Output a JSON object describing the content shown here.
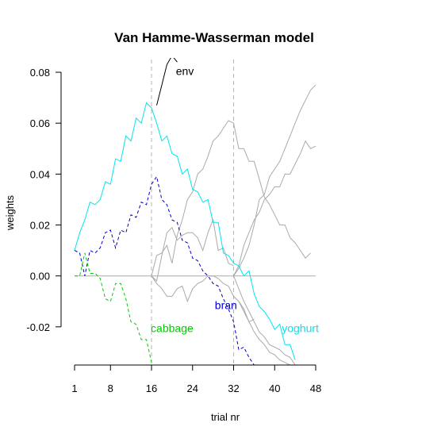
{
  "chart_data": {
    "type": "line",
    "title": "Van Hamme-Wasserman model",
    "xlabel": "trial nr",
    "ylabel": "weights",
    "xlim": [
      1,
      48
    ],
    "ylim": [
      -0.035,
      0.085
    ],
    "x_ticks": [
      1,
      8,
      16,
      24,
      32,
      40,
      48
    ],
    "y_ticks": [
      0.08,
      0.06,
      0.04,
      0.02,
      0.0,
      -0.02
    ],
    "y_tick_labels": [
      "0.08",
      "0.06",
      "0.04",
      "0.02",
      "0.00",
      "-0.02"
    ],
    "vlines": [
      16,
      32
    ],
    "hline": 0,
    "grid": false,
    "labels": [
      {
        "text": "env",
        "series": "env",
        "x": 22.5,
        "y": 0.0805
      },
      {
        "text": "bran",
        "series": "bran",
        "x": 30.5,
        "y": -0.0115
      },
      {
        "text": "cabbage",
        "series": "cabbage",
        "x": 20,
        "y": -0.0205
      },
      {
        "text": "yoghurt",
        "series": "yoghurt",
        "x": 45,
        "y": -0.0205
      }
    ],
    "series": [
      {
        "name": "env",
        "color": "#000000",
        "style": "solid",
        "x": [
          17,
          18,
          19,
          20,
          21
        ],
        "y": [
          0.067,
          0.075,
          0.083,
          0.0865,
          0.084
        ]
      },
      {
        "name": "yoghurt",
        "color": "#00e5ee",
        "style": "solid",
        "x": [
          1,
          2,
          3,
          4,
          5,
          6,
          7,
          8,
          9,
          10,
          11,
          12,
          13,
          14,
          15,
          16,
          17,
          18,
          19,
          20,
          21,
          22,
          23,
          24,
          25,
          26,
          27,
          28,
          29,
          30,
          31,
          32,
          33,
          34,
          35,
          36,
          37,
          38,
          39,
          40,
          41,
          42,
          43,
          44
        ],
        "y": [
          0.01,
          0.017,
          0.022,
          0.029,
          0.028,
          0.03,
          0.037,
          0.036,
          0.046,
          0.045,
          0.055,
          0.053,
          0.062,
          0.06,
          0.068,
          0.066,
          0.06,
          0.053,
          0.055,
          0.048,
          0.047,
          0.04,
          0.042,
          0.034,
          0.033,
          0.029,
          0.03,
          0.021,
          0.021,
          0.009,
          0.008,
          0.005,
          0.004,
          0.0,
          0.002,
          -0.007,
          -0.012,
          -0.014,
          -0.017,
          -0.021,
          -0.019,
          -0.027,
          -0.027,
          -0.033
        ]
      },
      {
        "name": "bran",
        "color": "#0000cd",
        "style": "dashed",
        "x": [
          1,
          2,
          3,
          4,
          5,
          6,
          7,
          8,
          9,
          10,
          11,
          12,
          13,
          14,
          15,
          16,
          17,
          18,
          19,
          20,
          21,
          22,
          23,
          24,
          25,
          26,
          27,
          28,
          29,
          30,
          31,
          32,
          33,
          34,
          35,
          36
        ],
        "y": [
          0.01,
          0.009,
          0.0,
          0.01,
          0.009,
          0.011,
          0.017,
          0.018,
          0.011,
          0.018,
          0.017,
          0.024,
          0.023,
          0.029,
          0.028,
          0.036,
          0.039,
          0.03,
          0.028,
          0.022,
          0.021,
          0.014,
          0.013,
          0.007,
          0.006,
          0.002,
          0.0,
          -0.003,
          -0.004,
          -0.009,
          -0.013,
          -0.018,
          -0.029,
          -0.028,
          -0.032,
          -0.035
        ]
      },
      {
        "name": "cabbage",
        "color": "#00cd00",
        "style": "dashed",
        "x": [
          1,
          2,
          3,
          4,
          5,
          6,
          7,
          8,
          9,
          10,
          11,
          12,
          13,
          14,
          15,
          16
        ],
        "y": [
          0.0,
          0.0,
          0.009,
          0.001,
          0.001,
          -0.001,
          -0.009,
          -0.01,
          -0.003,
          -0.003,
          -0.009,
          -0.018,
          -0.019,
          -0.025,
          -0.025,
          -0.034
        ]
      },
      {
        "name": "gray-1",
        "color": "#aaaaaa",
        "style": "solid",
        "x": [
          16,
          17,
          18,
          19,
          20,
          21,
          22,
          23,
          24,
          25,
          26,
          27,
          28,
          29,
          30,
          31,
          32
        ],
        "y": [
          0.0,
          0.008,
          0.009,
          0.012,
          0.005,
          0.016,
          0.022,
          0.03,
          0.033,
          0.04,
          0.042,
          0.047,
          0.053,
          0.055,
          0.058,
          0.061,
          0.06
        ]
      },
      {
        "name": "gray-2",
        "color": "#aaaaaa",
        "style": "solid",
        "x": [
          32,
          33,
          34,
          35,
          36,
          37,
          38,
          39,
          40,
          41,
          42,
          43,
          44,
          45,
          46,
          47
        ],
        "y": [
          0.06,
          0.05,
          0.05,
          0.045,
          0.045,
          0.038,
          0.031,
          0.028,
          0.024,
          0.02,
          0.02,
          0.015,
          0.013,
          0.01,
          0.007,
          0.009
        ]
      },
      {
        "name": "gray-3",
        "color": "#aaaaaa",
        "style": "solid",
        "x": [
          16,
          17,
          18,
          19,
          20,
          21,
          22,
          23,
          24,
          25,
          26,
          27,
          28,
          29,
          30,
          31,
          32,
          33,
          34,
          35,
          36
        ],
        "y": [
          0.0,
          -0.003,
          -0.005,
          -0.008,
          -0.008,
          -0.005,
          -0.004,
          -0.01,
          -0.005,
          -0.003,
          -0.002,
          0.0,
          0.0,
          -0.001,
          -0.003,
          -0.004,
          -0.008,
          -0.01,
          -0.014,
          -0.018,
          -0.017
        ]
      },
      {
        "name": "gray-4",
        "color": "#aaaaaa",
        "style": "solid",
        "x": [
          32,
          33,
          34,
          35,
          36,
          37,
          38,
          39,
          40,
          41,
          42,
          43,
          44,
          45,
          46,
          47,
          48
        ],
        "y": [
          -0.008,
          -0.01,
          -0.013,
          -0.018,
          -0.022,
          -0.025,
          -0.027,
          -0.03,
          -0.031,
          -0.033,
          -0.034,
          -0.035,
          -0.035,
          -0.035,
          -0.035,
          -0.035,
          -0.035
        ]
      },
      {
        "name": "gray-5",
        "color": "#aaaaaa",
        "style": "solid",
        "x": [
          16,
          17,
          18,
          19,
          20,
          21,
          22,
          23,
          24,
          25,
          26,
          27,
          28,
          29,
          30,
          31,
          32
        ],
        "y": [
          0.0,
          -0.002,
          0.008,
          0.017,
          0.019,
          0.014,
          0.016,
          0.017,
          0.017,
          0.015,
          0.01,
          0.017,
          0.022,
          0.01,
          0.011,
          0.005,
          0.004
        ]
      },
      {
        "name": "gray-6",
        "color": "#aaaaaa",
        "style": "solid",
        "x": [
          32,
          33,
          34,
          35,
          36,
          37,
          38,
          39,
          40,
          41,
          42,
          43,
          44,
          45,
          46,
          47,
          48
        ],
        "y": [
          0.0,
          0.004,
          0.012,
          0.017,
          0.022,
          0.025,
          0.03,
          0.032,
          0.035,
          0.035,
          0.04,
          0.04,
          0.044,
          0.048,
          0.053,
          0.05,
          0.051
        ]
      },
      {
        "name": "gray-7",
        "color": "#aaaaaa",
        "style": "solid",
        "x": [
          32,
          33,
          34,
          35,
          36,
          37,
          38,
          39,
          40,
          41,
          42,
          43,
          44,
          45,
          46,
          47,
          48
        ],
        "y": [
          0.0,
          0.003,
          0.007,
          0.012,
          0.02,
          0.03,
          0.032,
          0.039,
          0.042,
          0.045,
          0.05,
          0.055,
          0.06,
          0.065,
          0.069,
          0.073,
          0.075
        ]
      },
      {
        "name": "gray-8",
        "color": "#aaaaaa",
        "style": "solid",
        "x": [
          32,
          33,
          34,
          35,
          36,
          37,
          38,
          39,
          40,
          41,
          42,
          43,
          44
        ],
        "y": [
          0.0,
          -0.005,
          -0.01,
          -0.014,
          -0.018,
          -0.022,
          -0.024,
          -0.027,
          -0.028,
          -0.029,
          -0.031,
          -0.032,
          -0.035
        ]
      }
    ]
  }
}
